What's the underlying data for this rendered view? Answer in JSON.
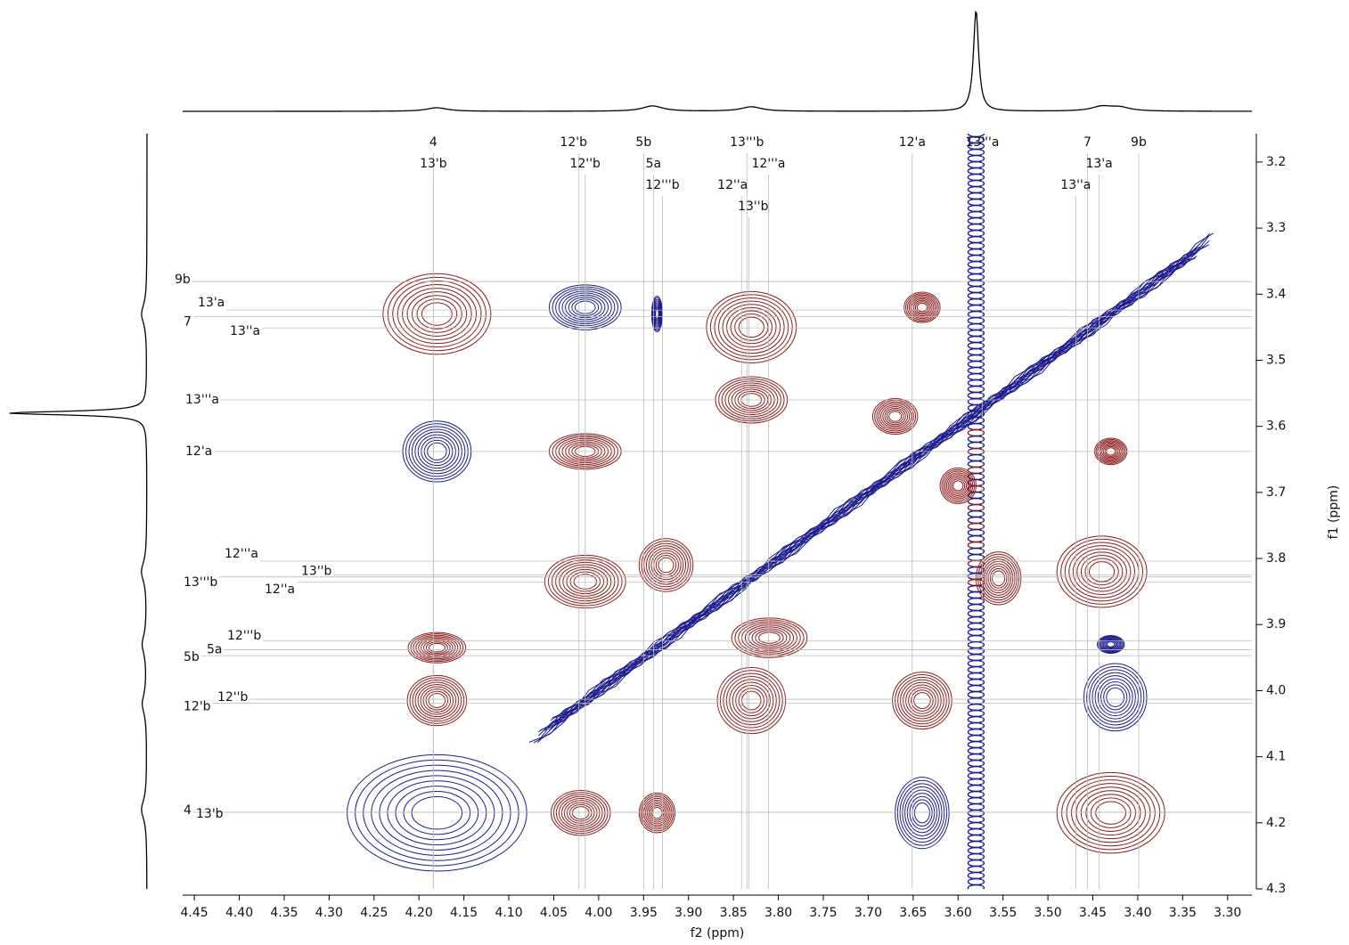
{
  "chart_data": {
    "type": "contour2d",
    "xlabel": "f2 (ppm)",
    "ylabel": "f1 (ppm)",
    "xlim": [
      4.463,
      3.273
    ],
    "ylim": [
      3.157,
      4.3
    ],
    "xticks": [
      4.45,
      {
        "value": 4.4,
        "label": "4.40"
      },
      4.35,
      {
        "value": 4.3,
        "label": "4.30"
      },
      4.25,
      {
        "value": 4.2,
        "label": "4.20"
      },
      4.15,
      {
        "value": 4.1,
        "label": "4.10"
      },
      4.05,
      {
        "value": 4.0,
        "label": "4.00"
      },
      3.95,
      {
        "value": 3.9,
        "label": "3.90"
      },
      3.85,
      {
        "value": 3.8,
        "label": "3.80"
      },
      3.75,
      {
        "value": 3.7,
        "label": "3.70"
      },
      3.65,
      {
        "value": 3.6,
        "label": "3.60"
      },
      3.55,
      {
        "value": 3.5,
        "label": "3.50"
      },
      3.45,
      {
        "value": 3.4,
        "label": "3.40"
      },
      3.35,
      {
        "value": 3.3,
        "label": "3.30"
      }
    ],
    "yticks": [
      3.2,
      3.3,
      3.4,
      3.5,
      3.6,
      3.7,
      3.8,
      3.9,
      {
        "value": 4.0,
        "label": "4.0"
      },
      4.1,
      4.2,
      4.3
    ],
    "series": [
      {
        "color": "#8b1c1c",
        "x": [
          4.18,
          3.83,
          3.64,
          3.83,
          4.015,
          3.43,
          4.015,
          3.925,
          3.555,
          3.44,
          4.18,
          3.81,
          4.18,
          3.83,
          3.64,
          4.02,
          3.935,
          3.43,
          3.67,
          3.6
        ],
        "values": [
          3.43,
          3.45,
          3.42,
          3.56,
          3.638,
          3.638,
          3.835,
          3.81,
          3.83,
          3.82,
          3.935,
          3.92,
          4.015,
          4.015,
          4.015,
          4.185,
          4.185,
          4.185,
          3.585,
          3.69
        ],
        "widths": [
          0.06,
          0.05,
          0.02,
          0.04,
          0.04,
          0.018,
          0.045,
          0.03,
          0.025,
          0.05,
          0.032,
          0.042,
          0.033,
          0.038,
          0.033,
          0.033,
          0.02,
          0.06,
          0.025,
          0.02
        ],
        "heights": [
          0.061,
          0.054,
          0.023,
          0.035,
          0.027,
          0.02,
          0.04,
          0.04,
          0.04,
          0.054,
          0.023,
          0.03,
          0.038,
          0.05,
          0.043,
          0.034,
          0.03,
          0.061,
          0.027,
          0.027
        ]
      },
      {
        "color": "#1c1c8b",
        "x": [
          4.015,
          3.935,
          4.18,
          3.43,
          3.425,
          4.18,
          3.64
        ],
        "values": [
          3.42,
          3.43,
          3.638,
          3.93,
          4.01,
          4.185,
          4.185
        ],
        "widths": [
          0.04,
          0.006,
          0.038,
          0.015,
          0.035,
          0.1,
          0.03
        ],
        "heights": [
          0.034,
          0.027,
          0.046,
          0.0135,
          0.051,
          0.088,
          0.054
        ]
      }
    ],
    "diagonal": [
      4.06,
      3.33
    ],
    "t1_noise": 3.58,
    "top_projection": {
      "x": [
        4.18,
        3.94,
        3.83,
        3.58,
        3.44,
        3.42
      ],
      "heights": [
        4,
        6,
        5,
        113,
        5,
        4
      ]
    },
    "left_projection": {
      "y": [
        3.58,
        3.43,
        3.82,
        3.93,
        4.02,
        4.18
      ],
      "heights": [
        155,
        6,
        6,
        5,
        5,
        6
      ]
    },
    "top_labels": [
      {
        "text": "4",
        "x": 4.184
      },
      {
        "text": "13'b",
        "x": 4.184
      },
      {
        "text": "12'b",
        "x": 4.022
      },
      {
        "text": "12''b",
        "x": 4.015
      },
      {
        "text": "5b",
        "x": 3.95
      },
      {
        "text": "5a",
        "x": 3.939
      },
      {
        "text": "12'''b",
        "x": 3.929
      },
      {
        "text": "13'''b",
        "x": 3.835
      },
      {
        "text": "12'''a",
        "x": 3.811
      },
      {
        "text": "12''a",
        "x": 3.841
      },
      {
        "text": "13''b",
        "x": 3.833
      },
      {
        "text": "12'a",
        "x": 3.651
      },
      {
        "text": "13'''a",
        "x": 3.573
      },
      {
        "text": "7",
        "x": 3.456
      },
      {
        "text": "13'a",
        "x": 3.443
      },
      {
        "text": "13''a",
        "x": 3.469
      },
      {
        "text": "9b",
        "x": 3.399
      }
    ],
    "left_labels": [
      {
        "text": "9b",
        "y": 3.381
      },
      {
        "text": "13'a",
        "y": 3.424
      },
      {
        "text": "7",
        "y": 3.434
      },
      {
        "text": "13''a",
        "y": 3.451
      },
      {
        "text": "13'''a",
        "y": 3.56
      },
      {
        "text": "12'a",
        "y": 3.638
      },
      {
        "text": "12'''a",
        "y": 3.804
      },
      {
        "text": "13'''b",
        "y": 3.828
      },
      {
        "text": "12''a",
        "y": 3.836
      },
      {
        "text": "13''b",
        "y": 3.825
      },
      {
        "text": "12'''b",
        "y": 3.925
      },
      {
        "text": "5a",
        "y": 3.938
      },
      {
        "text": "5b",
        "y": 3.947
      },
      {
        "text": "12''b",
        "y": 4.013
      },
      {
        "text": "12'b",
        "y": 4.019
      },
      {
        "text": "4",
        "y": 4.184
      },
      {
        "text": "13'b",
        "y": 4.184
      }
    ]
  }
}
